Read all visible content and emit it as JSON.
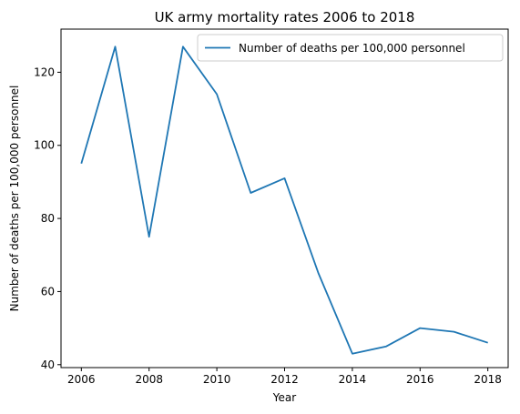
{
  "chart_data": {
    "type": "line",
    "title": "UK army mortality rates 2006 to 2018",
    "xlabel": "Year",
    "ylabel": "Number of deaths per 100,000 personnel",
    "x": [
      2006,
      2007,
      2008,
      2009,
      2010,
      2011,
      2012,
      2013,
      2014,
      2015,
      2016,
      2017,
      2018
    ],
    "series": [
      {
        "name": "Number of deaths per 100,000 personnel",
        "color": "#1f77b4",
        "values": [
          95,
          127,
          75,
          127,
          114,
          87,
          91,
          65,
          43,
          45,
          50,
          49,
          46
        ]
      }
    ],
    "xlim": [
      2005.4,
      2018.6
    ],
    "ylim": [
      39.2,
      131.8
    ],
    "xticks": [
      2006,
      2008,
      2010,
      2012,
      2014,
      2016,
      2018
    ],
    "yticks": [
      40,
      60,
      80,
      100,
      120
    ],
    "grid": false,
    "legend_position": "upper-right"
  }
}
